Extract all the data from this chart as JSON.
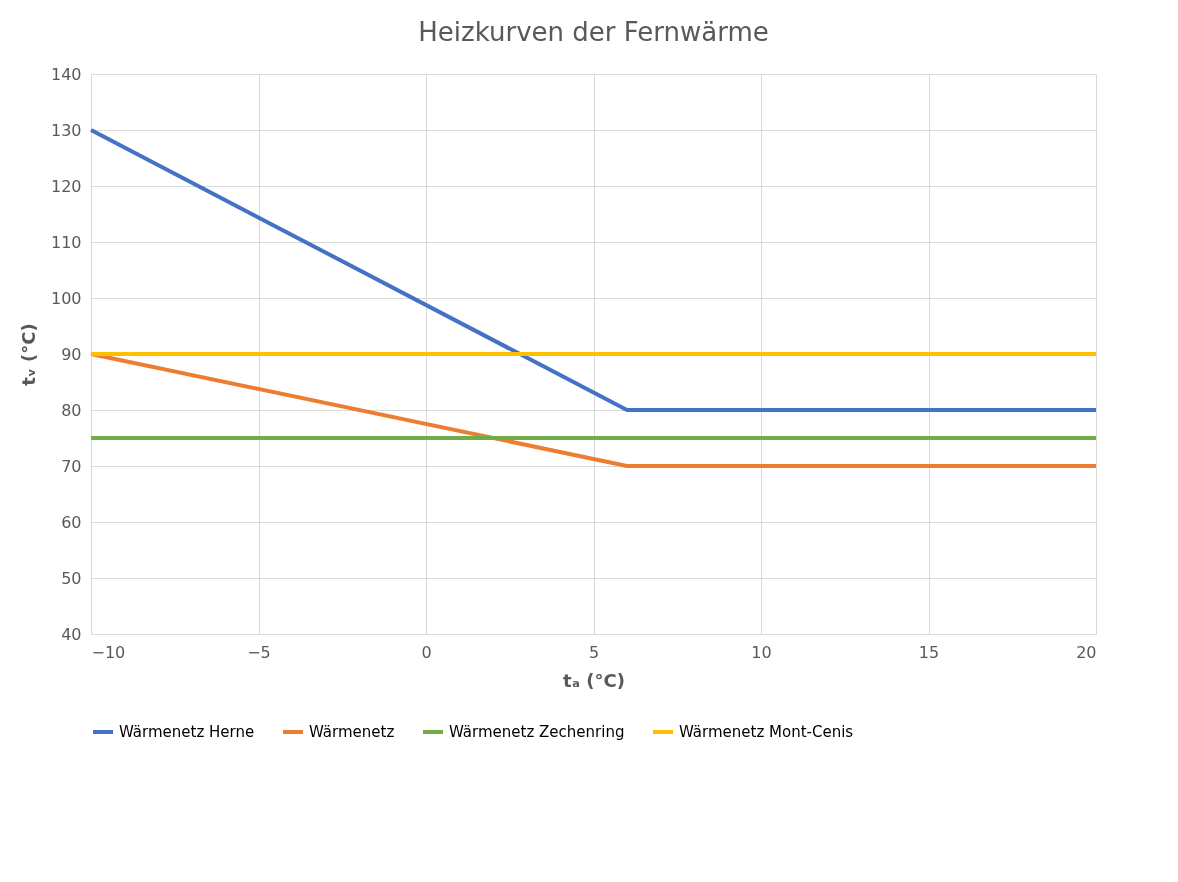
{
  "chart_data": {
    "type": "line",
    "title": "Heizkurven der Fernwärme",
    "xlabel": "tₐ (°C)",
    "ylabel": "tᵥ (°C)",
    "xlim": [
      -10,
      20
    ],
    "xticks": [
      -10,
      -5,
      0,
      5,
      10,
      15,
      20
    ],
    "ylim": [
      40,
      140
    ],
    "yticks": [
      40,
      50,
      60,
      70,
      80,
      90,
      100,
      110,
      120,
      130,
      140
    ],
    "grid": true,
    "legend": "bottom",
    "marker": "none",
    "line_style": "solid",
    "series": [
      {
        "name": "Wärmenetz Herne",
        "color": "#4472c4",
        "x": [
          -10,
          6,
          20
        ],
        "values": [
          130,
          80,
          80
        ]
      },
      {
        "name": "Wärmenetz",
        "color": "#ed7d31",
        "x": [
          -10,
          6,
          20
        ],
        "values": [
          90,
          70,
          70
        ]
      },
      {
        "name": "Wärmenetz Zechenring",
        "color": "#70ad47",
        "x": [
          -10,
          20
        ],
        "values": [
          75,
          75
        ]
      },
      {
        "name": "Wärmenetz Mont-Cenis",
        "color": "#ffc000",
        "x": [
          -10,
          20
        ],
        "values": [
          90,
          90
        ]
      }
    ]
  }
}
